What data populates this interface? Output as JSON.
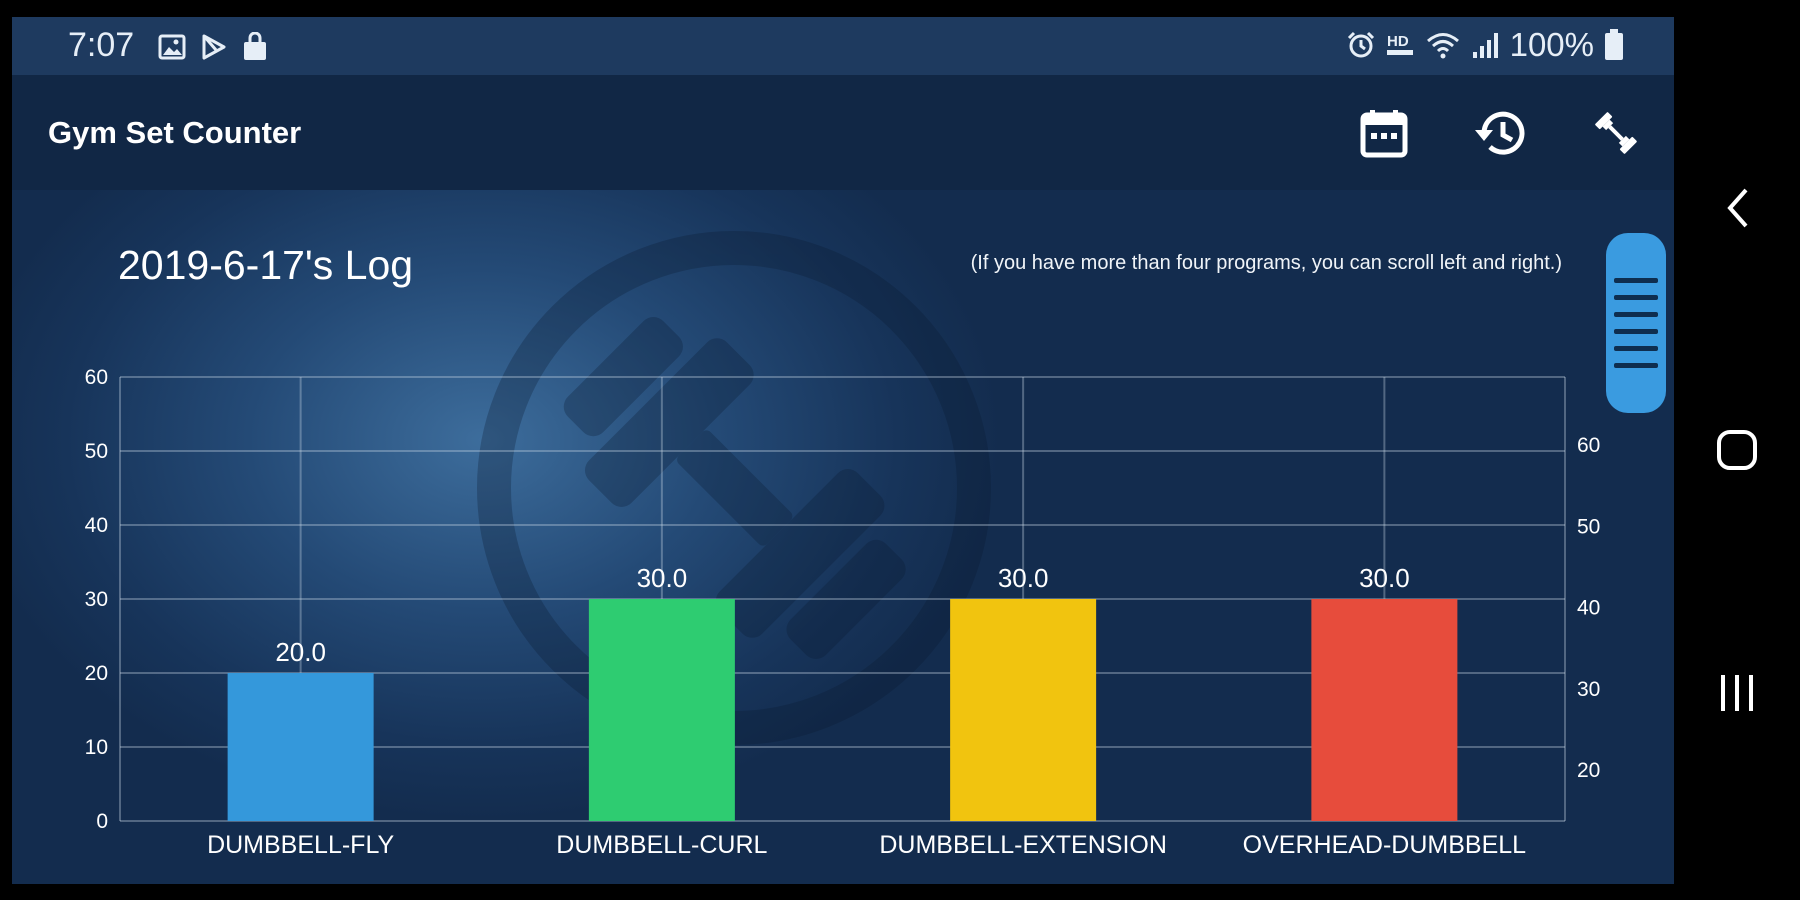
{
  "status_bar": {
    "time": "7:07",
    "battery": "100%",
    "left_icons": [
      "image-icon",
      "play-store-icon",
      "shopping-bag-icon"
    ],
    "right_icons": [
      "alarm-icon",
      "hd-voice-icon",
      "wifi-icon",
      "signal-icon",
      "battery-icon"
    ]
  },
  "app_bar": {
    "title": "Gym Set Counter",
    "actions": [
      "calendar-icon",
      "history-icon",
      "dumbbell-icon"
    ]
  },
  "log": {
    "title": "2019-6-17's Log",
    "hint": "(If you have more than four programs, you can scroll left and right.)"
  },
  "chart_data": {
    "type": "bar",
    "categories": [
      "DUMBBELL-FLY",
      "DUMBBELL-CURL",
      "DUMBBELL-EXTENSION",
      "OVERHEAD-DUMBBELL"
    ],
    "values": [
      20.0,
      30.0,
      30.0,
      30.0
    ],
    "value_labels": [
      "20.0",
      "30.0",
      "30.0",
      "30.0"
    ],
    "colors": [
      "#3498db",
      "#2ecc71",
      "#f1c40f",
      "#e74c3c"
    ],
    "ylim": [
      0,
      60
    ],
    "y_ticks": [
      "0",
      "10",
      "20",
      "30",
      "40",
      "50",
      "60"
    ],
    "right_axis_ticks": [
      "20",
      "30",
      "40",
      "50",
      "60"
    ],
    "grid": true,
    "legend": "none"
  },
  "nav_bar": {
    "buttons": [
      "back-icon",
      "home-icon",
      "recents-icon"
    ]
  },
  "colors": {
    "status_bar": "#1e3a5f",
    "app_bar": "#112745",
    "scroll_handle": "#3a9be0"
  }
}
